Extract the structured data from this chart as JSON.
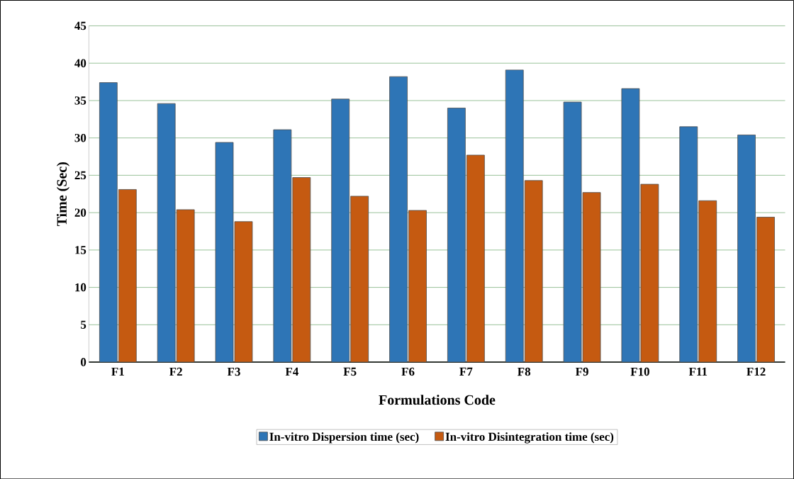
{
  "chart_data": {
    "type": "bar",
    "xlabel": "Formulations Code",
    "ylabel": "Time (Sec)",
    "categories": [
      "F1",
      "F2",
      "F3",
      "F4",
      "F5",
      "F6",
      "F7",
      "F8",
      "F9",
      "F10",
      "F11",
      "F12"
    ],
    "series": [
      {
        "name": "In-vitro Dispersion time (sec)",
        "color": "#2e75b6",
        "values": [
          37.4,
          34.6,
          29.4,
          31.1,
          35.2,
          38.2,
          34.0,
          39.1,
          34.8,
          36.6,
          31.5,
          30.4
        ]
      },
      {
        "name": "In-vitro Disintegration time (sec)",
        "color": "#c55a11",
        "values": [
          23.1,
          20.4,
          18.8,
          24.7,
          22.2,
          20.3,
          27.7,
          24.3,
          22.7,
          23.8,
          21.6,
          19.4
        ]
      }
    ],
    "ylim": [
      0,
      45
    ],
    "yticks": [
      0,
      5,
      10,
      15,
      20,
      25,
      30,
      35,
      40,
      45
    ],
    "grid": "y",
    "legend": "bottom"
  }
}
